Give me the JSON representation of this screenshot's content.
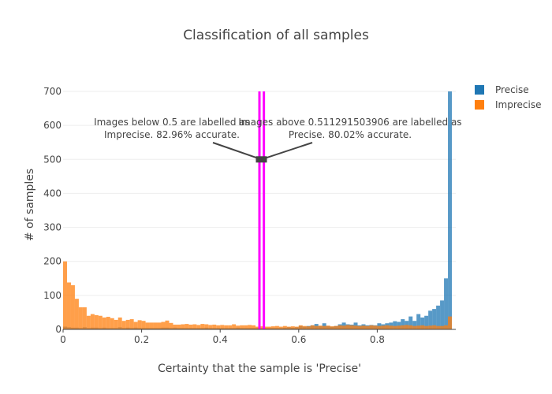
{
  "chart_data": {
    "type": "bar",
    "title": "Classification of all samples",
    "xlabel": "Certainty that the sample is 'Precise'",
    "ylabel": "# of samples",
    "xlim": [
      0,
      1
    ],
    "ylim": [
      0,
      700
    ],
    "bin_width": 0.01,
    "barmode": "overlay",
    "grid": true,
    "legend_placement": "top-right",
    "x_ticks": [
      0,
      0.2,
      0.4,
      0.6,
      0.8
    ],
    "y_ticks": [
      0,
      100,
      200,
      300,
      400,
      500,
      600,
      700
    ],
    "series": [
      {
        "name": "Precise",
        "color": "#1f77b4",
        "values": [
          8,
          6,
          5,
          5,
          4,
          6,
          4,
          5,
          5,
          4,
          5,
          4,
          4,
          4,
          6,
          4,
          5,
          4,
          5,
          4,
          4,
          4,
          4,
          4,
          4,
          5,
          5,
          4,
          5,
          4,
          4,
          4,
          4,
          4,
          4,
          4,
          5,
          4,
          4,
          4,
          4,
          4,
          4,
          4,
          5,
          4,
          4,
          4,
          4,
          4,
          4,
          4,
          4,
          4,
          4,
          4,
          5,
          6,
          5,
          6,
          10,
          8,
          10,
          12,
          16,
          10,
          18,
          10,
          8,
          10,
          15,
          20,
          15,
          14,
          20,
          12,
          15,
          12,
          13,
          12,
          18,
          15,
          18,
          20,
          24,
          22,
          30,
          25,
          38,
          25,
          45,
          35,
          40,
          55,
          60,
          70,
          85,
          150,
          700
        ]
      },
      {
        "name": "Imprecise",
        "color": "#ff7f0e",
        "values": [
          200,
          138,
          130,
          90,
          65,
          65,
          40,
          45,
          42,
          40,
          35,
          37,
          33,
          28,
          35,
          25,
          28,
          30,
          22,
          27,
          25,
          20,
          20,
          20,
          20,
          22,
          26,
          19,
          14,
          14,
          15,
          16,
          14,
          15,
          13,
          16,
          15,
          13,
          14,
          12,
          13,
          12,
          12,
          15,
          11,
          12,
          12,
          13,
          12,
          8,
          9,
          8,
          8,
          9,
          10,
          8,
          10,
          8,
          9,
          8,
          12,
          10,
          9,
          12,
          10,
          11,
          10,
          11,
          9,
          10,
          12,
          11,
          13,
          12,
          11,
          10,
          11,
          10,
          12,
          11,
          10,
          11,
          12,
          11,
          10,
          11,
          12,
          13,
          12,
          10,
          11,
          12,
          10,
          11,
          12,
          10,
          10,
          12,
          38
        ]
      }
    ],
    "threshold_lines": [
      0.5,
      0.511291503906
    ],
    "annotations": [
      "Images below 0.5 are labelled as Imprecise. 82.96% accurate.",
      "Images above 0.511291503906 are labelled as Precise. 80.02% accurate."
    ],
    "annotation_point": [
      0.505,
      500
    ]
  },
  "colors": {
    "threshold": "#ff00ff",
    "annotation_arrow": "#444444",
    "grid": "#eeeeee"
  }
}
